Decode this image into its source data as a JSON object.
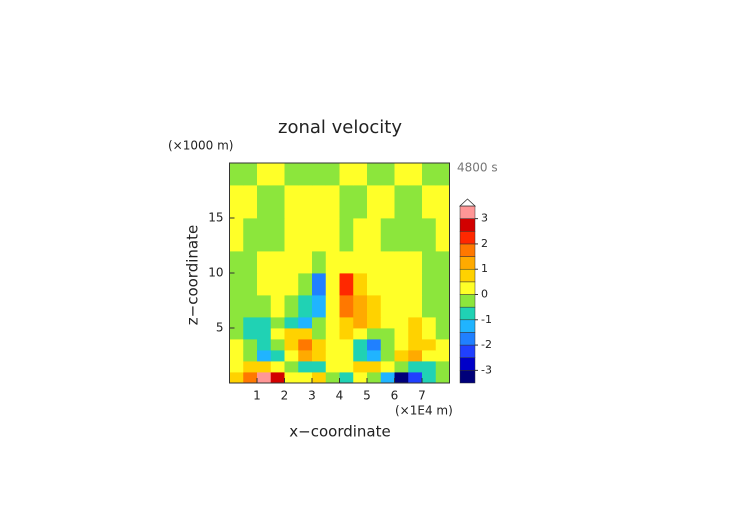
{
  "chart_data": {
    "type": "contour",
    "title": "zonal velocity",
    "y_unit": "(×1000 m)",
    "x_unit": "(×1E4 m)",
    "time_label": "4800 s",
    "xlabel": "x−coordinate",
    "ylabel": "z−coordinate",
    "xlim": [
      0,
      8
    ],
    "ylim": [
      0,
      20
    ],
    "xticks": [
      1,
      2,
      3,
      4,
      5,
      6,
      7
    ],
    "yticks": [
      5,
      10,
      15
    ],
    "x_edges": [
      0,
      0.5,
      1,
      1.5,
      2,
      2.5,
      3,
      3.5,
      4,
      4.5,
      5,
      5.5,
      6,
      6.5,
      7,
      7.5,
      8
    ],
    "z_edges": [
      0,
      1,
      2,
      3,
      4,
      5,
      6,
      8,
      10,
      12,
      15,
      18,
      20
    ],
    "values": [
      [
        0.8,
        1.5,
        3.2,
        2.5,
        0.3,
        0.2,
        0.7,
        -0.4,
        -0.8,
        0.3,
        -0.2,
        -1.5,
        -3.2,
        -2.5,
        -0.8,
        -0.4
      ],
      [
        0.3,
        0.6,
        0.8,
        0.4,
        -0.3,
        -0.6,
        -0.7,
        0.2,
        0.2,
        0.7,
        0.6,
        0.3,
        -0.4,
        -0.8,
        -0.6,
        -0.3
      ],
      [
        0.1,
        -0.3,
        -1.2,
        -0.6,
        0.3,
        1.0,
        0.6,
        0.2,
        0.1,
        -0.7,
        -1.2,
        -0.3,
        0.5,
        1.0,
        0.4,
        0.1
      ],
      [
        0.1,
        -0.5,
        -0.8,
        -0.3,
        0.5,
        1.8,
        0.8,
        0.1,
        0.1,
        -0.9,
        -1.8,
        -0.5,
        0.3,
        0.9,
        0.6,
        0.1
      ],
      [
        -0.2,
        -0.7,
        -0.6,
        0.2,
        0.6,
        0.5,
        -0.3,
        0.2,
        0.6,
        0.4,
        -0.4,
        -0.2,
        0.1,
        0.8,
        0.4,
        -0.1
      ],
      [
        -0.3,
        -0.8,
        -0.6,
        -0.2,
        -0.8,
        -1.2,
        -0.5,
        0.3,
        0.8,
        1.3,
        0.8,
        0.1,
        0.2,
        0.7,
        0.4,
        -0.2
      ],
      [
        -0.3,
        -0.4,
        -0.2,
        0.1,
        -0.3,
        -0.8,
        -1.5,
        0.2,
        1.5,
        1.2,
        0.6,
        0.2,
        0.1,
        0.2,
        -0.1,
        -0.2
      ],
      [
        -0.2,
        -0.2,
        0.1,
        0.2,
        0.3,
        -0.3,
        -2.0,
        0.3,
        2.0,
        0.6,
        0.2,
        0.1,
        0.2,
        0.1,
        -0.1,
        -0.2
      ],
      [
        -0.2,
        -0.1,
        0.1,
        0.2,
        0.2,
        0.3,
        -0.3,
        0.4,
        0.3,
        0.3,
        0.2,
        0.2,
        0.1,
        0.1,
        -0.1,
        -0.2
      ],
      [
        0.2,
        -0.2,
        -0.3,
        -0.2,
        0.1,
        0.3,
        0.2,
        0.2,
        -0.2,
        0.1,
        0.2,
        -0.1,
        -0.2,
        -0.3,
        -0.2,
        0.2
      ],
      [
        0.2,
        0.3,
        -0.2,
        -0.2,
        0.1,
        0.2,
        0.3,
        0.2,
        -0.2,
        -0.2,
        0.3,
        0.2,
        -0.2,
        -0.2,
        0.2,
        0.3
      ],
      [
        -0.2,
        -0.2,
        0.2,
        0.2,
        -0.2,
        -0.2,
        -0.2,
        -0.3,
        0.2,
        0.2,
        -0.2,
        -0.3,
        0.2,
        0.2,
        -0.2,
        -0.2
      ]
    ],
    "levels": [
      -3.5,
      -3,
      -2.5,
      -2,
      -1.5,
      -1,
      -0.5,
      0,
      0.5,
      1,
      1.5,
      2,
      2.5,
      3,
      3.5
    ],
    "colors": [
      "#00007a",
      "#0000c8",
      "#2040ff",
      "#2080ff",
      "#20b4ff",
      "#20d2b4",
      "#8ce63c",
      "#ffff28",
      "#ffd200",
      "#ffaa00",
      "#ff7800",
      "#ff2800",
      "#d20000",
      "#ff9696"
    ],
    "colorbar_ticks": [
      -3,
      -2,
      -1,
      0,
      1,
      2,
      3
    ]
  }
}
